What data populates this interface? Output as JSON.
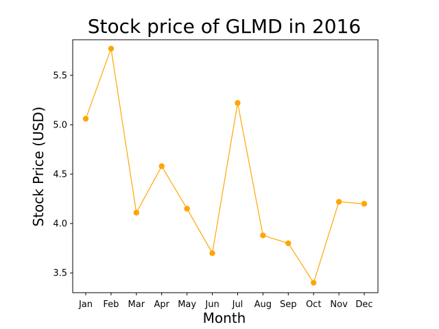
{
  "chart_data": {
    "type": "line",
    "title": "Stock price of GLMD in 2016",
    "xlabel": "Month",
    "ylabel": "Stock Price (USD)",
    "categories": [
      "Jan",
      "Feb",
      "Mar",
      "Apr",
      "May",
      "Jun",
      "Jul",
      "Aug",
      "Sep",
      "Oct",
      "Nov",
      "Dec"
    ],
    "series": [
      {
        "values": [
          5.06,
          5.77,
          4.11,
          4.58,
          4.15,
          3.7,
          5.22,
          3.88,
          3.8,
          3.4,
          4.22,
          4.2
        ],
        "color": "#ffa500",
        "marker": "circle"
      }
    ],
    "yticks": [
      "3.5",
      "4.0",
      "4.5",
      "5.0",
      "5.5"
    ],
    "ylim": [
      3.3,
      5.86
    ],
    "grid": false,
    "legend": "none"
  }
}
